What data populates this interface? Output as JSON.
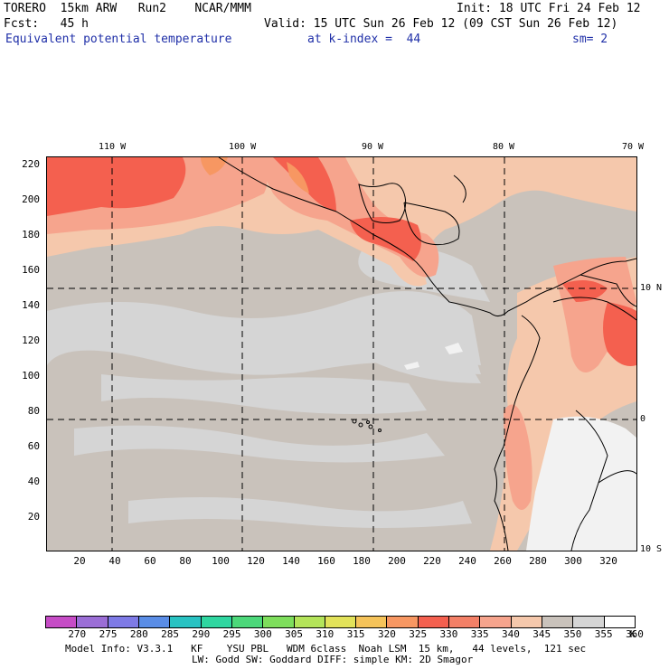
{
  "header": {
    "line1_left": "TORERO  15km ARW   Run2    NCAR/MMM",
    "line1_right": "Init: 18 UTC Fri 24 Feb 12",
    "line2_left": "Fcst:   45 h",
    "line2_right": "Valid: 15 UTC Sun 26 Feb 12 (09 CST Sun 26 Feb 12)",
    "line3_field": "Equivalent potential temperature",
    "line3_level": "at k-index =  44",
    "line3_sm": "sm= 2"
  },
  "map": {
    "lon_labels": [
      "110 W",
      "100 W",
      "90 W",
      "80 W",
      "70 W"
    ],
    "lat_labels": [
      "10 N",
      "0",
      "10 S"
    ],
    "y_ticks": [
      "220",
      "200",
      "180",
      "160",
      "140",
      "120",
      "100",
      "80",
      "60",
      "40",
      "20"
    ],
    "x_ticks": [
      "20",
      "40",
      "60",
      "80",
      "100",
      "120",
      "140",
      "160",
      "180",
      "200",
      "220",
      "240",
      "260",
      "280",
      "300",
      "320"
    ],
    "colors": {
      "ocean_base": "#c9c2bb",
      "light_gray": "#d5d5d5",
      "peach": "#f5c8ac",
      "salmon": "#f6a48d",
      "red": "#f4604f",
      "orange": "#f79762",
      "white_land": "#f2f2f2",
      "coast": "#000000"
    }
  },
  "colorbar": {
    "labels": [
      "270",
      "275",
      "280",
      "285",
      "290",
      "295",
      "300",
      "305",
      "310",
      "315",
      "320",
      "325",
      "330",
      "335",
      "340",
      "345",
      "350",
      "355",
      "360",
      "K"
    ],
    "colors": [
      "#c64cc6",
      "#9b6ed6",
      "#7e7ae6",
      "#5a8de6",
      "#28c2c2",
      "#2fd6a0",
      "#4cd87a",
      "#7ede5c",
      "#b4e45a",
      "#e2e25a",
      "#f5c35a",
      "#f79762",
      "#f4604f",
      "#f38067",
      "#f6a48d",
      "#f5c8ac",
      "#c9c2bb",
      "#d5d5d5",
      "#ffffff"
    ]
  },
  "footer": {
    "line1": "Model Info: V3.3.1   KF    YSU PBL   WDM 6class  Noah LSM  15 km,   44 levels,  121 sec",
    "line2": "LW: Godd SW: Goddard DIFF: simple KM: 2D Smagor"
  }
}
